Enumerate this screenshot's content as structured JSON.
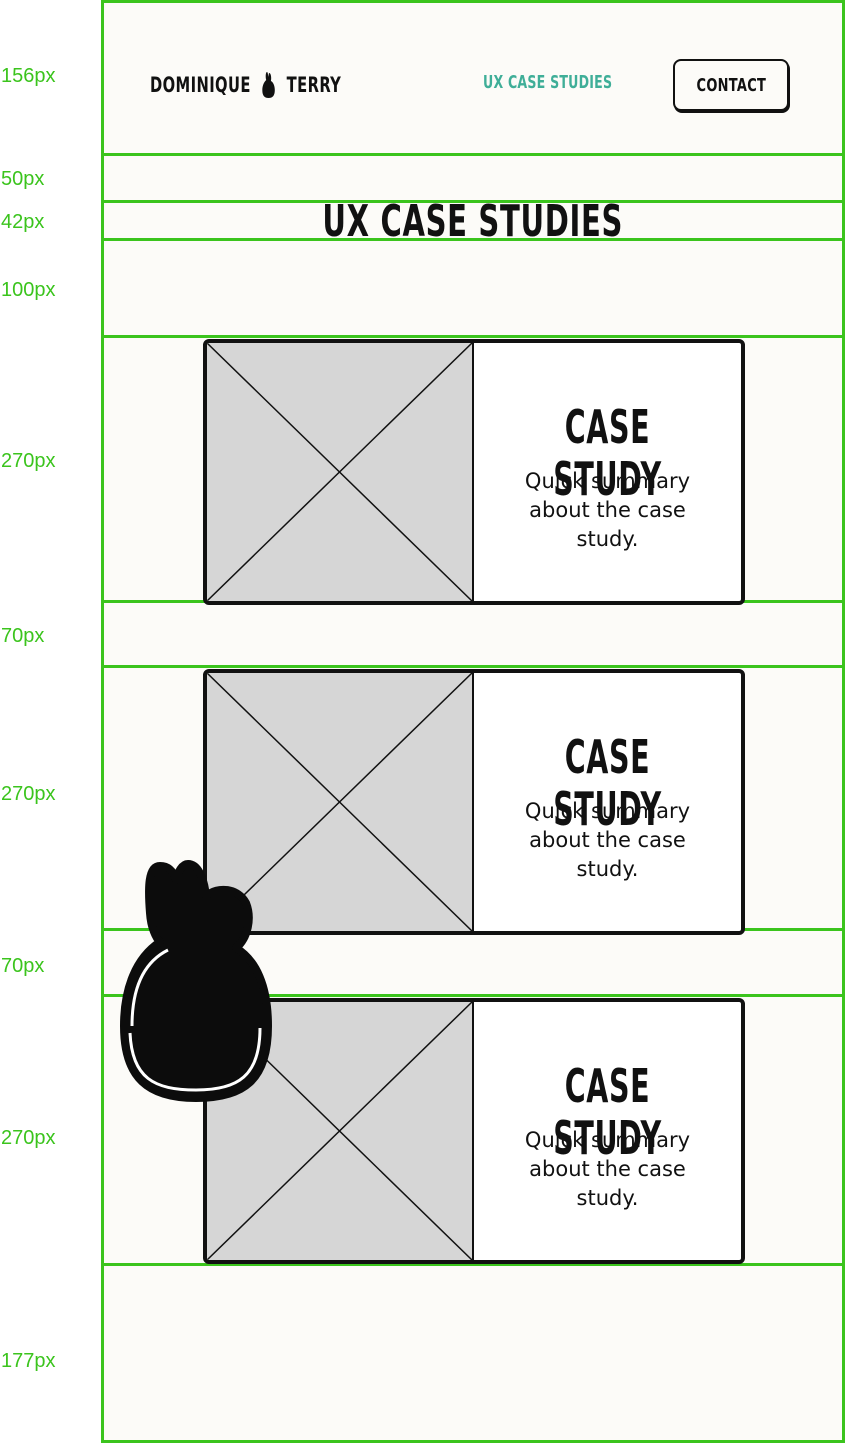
{
  "annotations": [
    "156px",
    "50px",
    "42px",
    "100px",
    "270px",
    "70px",
    "270px",
    "70px",
    "270px",
    "177px"
  ],
  "header": {
    "brand_first": "DOMINIQUE",
    "brand_last": "TERRY",
    "nav_link": "UX CASE STUDIES",
    "contact_label": "CONTACT"
  },
  "page_title": "UX CASE STUDIES",
  "cards": [
    {
      "title": "CASE STUDY",
      "summary": "Quick summary about the case study."
    },
    {
      "title": "CASE STUDY",
      "summary": "Quick summary about the case study."
    },
    {
      "title": "CASE STUDY",
      "summary": "Quick summary about the case study."
    }
  ],
  "colors": {
    "guide": "#3bc41d",
    "nav_link": "#3fae98",
    "ink": "#111111",
    "placeholder": "#d6d6d6"
  }
}
